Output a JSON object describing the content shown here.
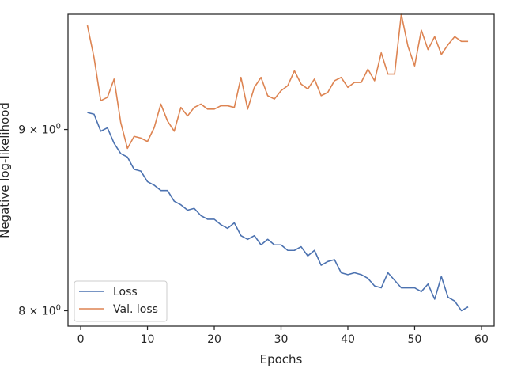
{
  "chart_data": {
    "type": "line",
    "xlabel": "Epochs",
    "ylabel": "Negative log-likelihood",
    "xlim": [
      -1.9,
      61.9
    ],
    "ylim": [
      7.92,
      9.7
    ],
    "yscale": "log",
    "x_ticks": [
      0,
      10,
      20,
      30,
      40,
      50,
      60
    ],
    "y_ticks": [
      {
        "value": 8,
        "base": "8 × 10",
        "exp": "0"
      },
      {
        "value": 9,
        "base": "9 × 10",
        "exp": "0"
      }
    ],
    "grid": false,
    "legend_position": "lower-left",
    "colors": {
      "loss": "#4c72b0",
      "val_loss": "#dd8452"
    },
    "x": [
      1,
      2,
      3,
      4,
      5,
      6,
      7,
      8,
      9,
      10,
      11,
      12,
      13,
      14,
      15,
      16,
      17,
      18,
      19,
      20,
      21,
      22,
      23,
      24,
      25,
      26,
      27,
      28,
      29,
      30,
      31,
      32,
      33,
      34,
      35,
      36,
      37,
      38,
      39,
      40,
      41,
      42,
      43,
      44,
      45,
      46,
      47,
      48,
      49,
      50,
      51,
      52,
      53,
      54,
      55,
      56,
      57,
      58
    ],
    "series": [
      {
        "name": "Loss",
        "color": "#4c72b0",
        "values": [
          9.1,
          9.09,
          8.99,
          9.01,
          8.92,
          8.86,
          8.84,
          8.77,
          8.76,
          8.7,
          8.68,
          8.65,
          8.65,
          8.59,
          8.57,
          8.54,
          8.55,
          8.51,
          8.49,
          8.49,
          8.46,
          8.44,
          8.47,
          8.4,
          8.38,
          8.4,
          8.35,
          8.38,
          8.35,
          8.35,
          8.32,
          8.32,
          8.34,
          8.29,
          8.32,
          8.24,
          8.26,
          8.27,
          8.2,
          8.19,
          8.2,
          8.19,
          8.17,
          8.13,
          8.12,
          8.2,
          8.16,
          8.12,
          8.12,
          8.12,
          8.1,
          8.14,
          8.06,
          8.18,
          8.07,
          8.05,
          8.0,
          8.02
        ]
      },
      {
        "name": "Val. loss",
        "color": "#dd8452",
        "values": [
          9.63,
          9.43,
          9.17,
          9.19,
          9.3,
          9.04,
          8.89,
          8.96,
          8.95,
          8.93,
          9.01,
          9.15,
          9.05,
          8.99,
          9.13,
          9.08,
          9.13,
          9.15,
          9.12,
          9.12,
          9.14,
          9.14,
          9.13,
          9.31,
          9.12,
          9.25,
          9.31,
          9.2,
          9.18,
          9.23,
          9.26,
          9.35,
          9.27,
          9.24,
          9.3,
          9.2,
          9.22,
          9.29,
          9.31,
          9.25,
          9.28,
          9.28,
          9.36,
          9.29,
          9.46,
          9.33,
          9.33,
          9.7,
          9.5,
          9.38,
          9.6,
          9.48,
          9.56,
          9.45,
          9.51,
          9.56,
          9.53,
          9.53
        ]
      }
    ]
  }
}
